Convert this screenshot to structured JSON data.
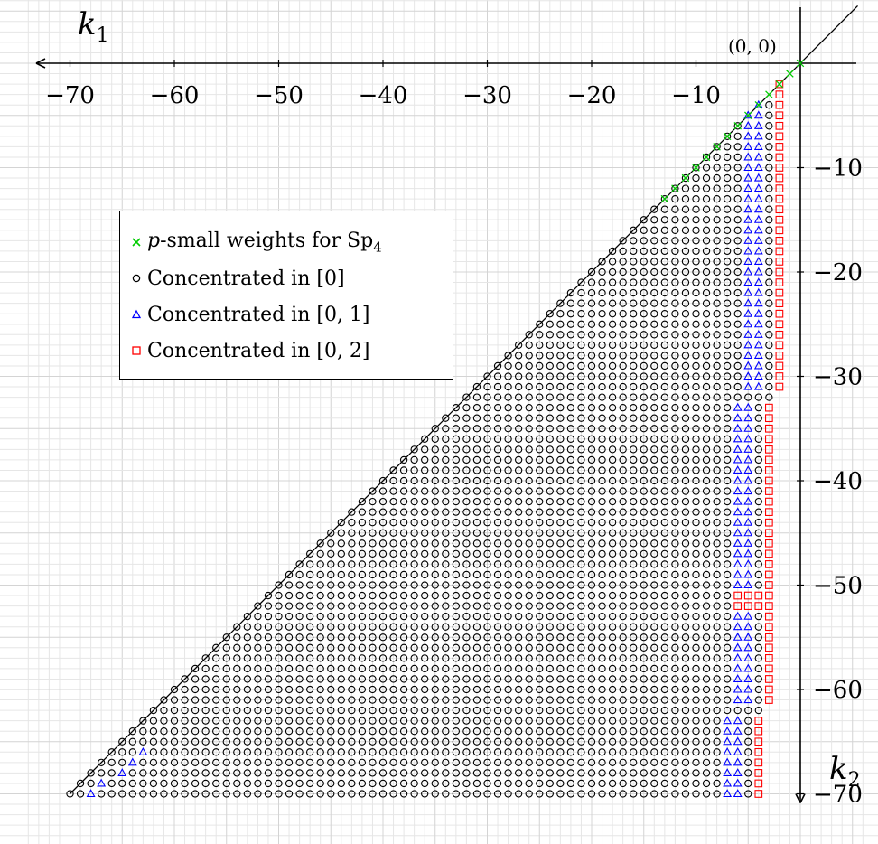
{
  "chart_data": {
    "type": "scatter",
    "x_axis": {
      "label": "k",
      "subscript": "1",
      "range": [
        -70,
        0
      ],
      "ticks": [
        -70,
        -60,
        -50,
        -40,
        -30,
        -20,
        -10
      ],
      "direction": "increasing-left-is-negative"
    },
    "y_axis": {
      "label": "k",
      "subscript": "2",
      "range": [
        -70,
        0
      ],
      "ticks": [
        -10,
        -20,
        -30,
        -40,
        -50,
        -60,
        -70
      ]
    },
    "origin_label": "(0, 0)",
    "grid": true,
    "diagonal_line": "k2 = k1",
    "domain": "integer lattice points with k1 <= k2 <= 0 (k2 >= k1), -70 <= k1,k2",
    "legend_position": "upper-left",
    "series": [
      {
        "name": "p-small weights for Sp4",
        "marker": "x",
        "color": "#00cc00",
        "rule": "all lattice points with -13 <= k1 <= 0, -13 <= k2 <= 0 and k2 >= k1"
      },
      {
        "name": "Concentrated in [0]",
        "marker": "circle",
        "color": "#000000",
        "rule": "all remaining points in the domain with k2 <= k1 - ... not covered by other series; occupies the main triangular region, including green-covered corner"
      },
      {
        "name": "Concentrated in [0, 1]",
        "marker": "triangle",
        "color": "#0000ff",
        "rule": "columns just left of the red squares near k1 = -4..-6, plus a few points along the lower-left diagonal near k1 = -68..-63"
      },
      {
        "name": "Concentrated in [0, 2]",
        "marker": "square",
        "color": "#ff0000",
        "rule": "column at k1 = -2 for k2 in [-31, -1], column at k1 = -3 for k2 in [-61, -33], column at k1 = -4 for k2 in [-70, -63], block k1 = -6..-4, k2 = -52..-51"
      }
    ]
  },
  "legend": {
    "items": [
      {
        "text_pre": "p",
        "text_post": "-small weights for Sp",
        "sub": "4",
        "marker": "cross-icon"
      },
      {
        "text": "Concentrated in [0]",
        "marker": "circle-icon"
      },
      {
        "text": "Concentrated in [0, 1]",
        "marker": "triangle-icon"
      },
      {
        "text": "Concentrated in [0, 2]",
        "marker": "square-icon"
      }
    ]
  }
}
